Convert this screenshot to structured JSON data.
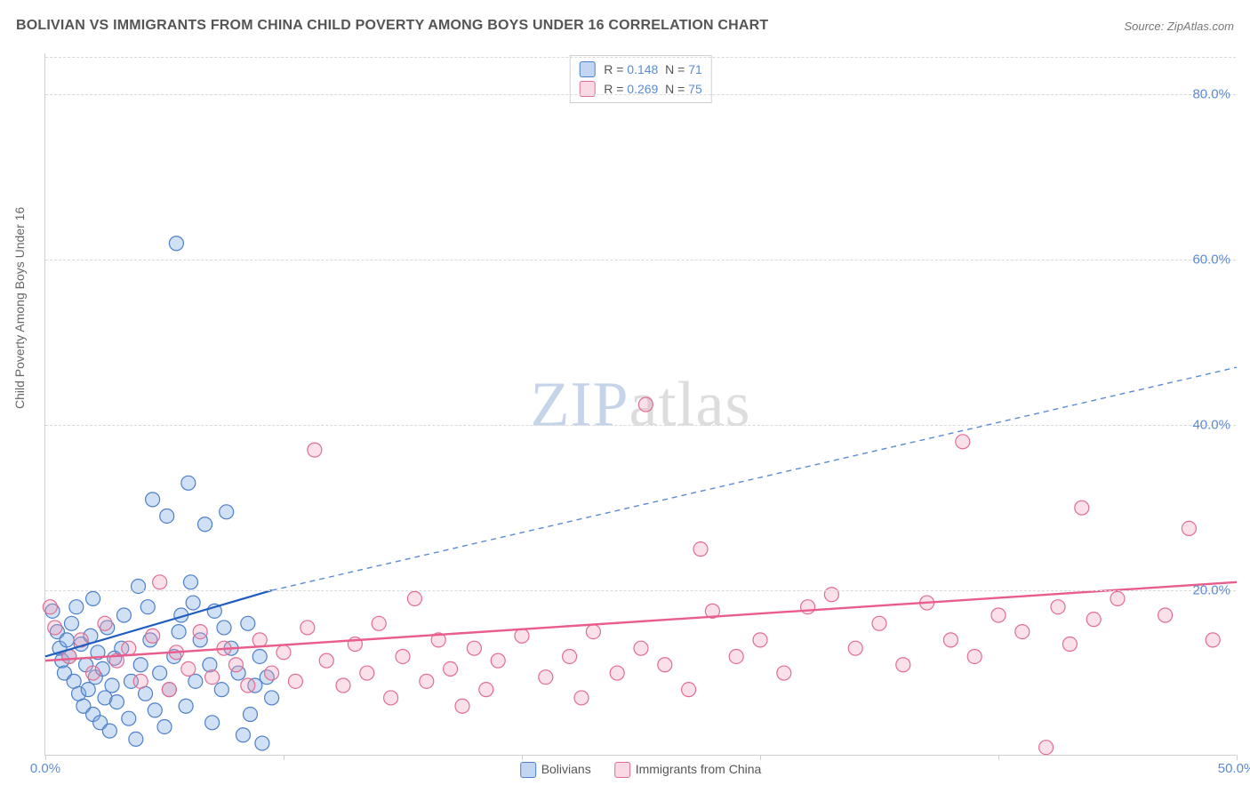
{
  "title": "BOLIVIAN VS IMMIGRANTS FROM CHINA CHILD POVERTY AMONG BOYS UNDER 16 CORRELATION CHART",
  "source": "Source: ZipAtlas.com",
  "watermark": {
    "part1": "ZIP",
    "part2": "atlas"
  },
  "y_axis_label": "Child Poverty Among Boys Under 16",
  "chart": {
    "type": "scatter",
    "background_color": "#ffffff",
    "grid_color": "#d9d9d9",
    "axis_color": "#cfcfcf",
    "tick_label_color": "#5b8bd4",
    "xlim": [
      0,
      50
    ],
    "ylim": [
      0,
      85
    ],
    "x_ticks": [
      0,
      10,
      20,
      30,
      40,
      50
    ],
    "x_tick_labels": [
      "0.0%",
      "",
      "",
      "",
      "",
      "50.0%"
    ],
    "y_ticks": [
      20,
      40,
      60,
      80
    ],
    "y_tick_labels": [
      "20.0%",
      "40.0%",
      "60.0%",
      "80.0%"
    ],
    "marker_radius": 8,
    "marker_stroke_width": 1.2,
    "series": [
      {
        "name": "Bolivians",
        "fill": "rgba(120,165,225,0.35)",
        "stroke": "#4d7fc9",
        "R": "0.148",
        "N": "71",
        "trend": {
          "solid": {
            "x1": 0.0,
            "y1": 12.0,
            "x2": 9.5,
            "y2": 20.0,
            "color": "#1f5dbf",
            "width": 2.2
          },
          "dashed": {
            "x1": 9.5,
            "y1": 20.0,
            "x2": 50.0,
            "y2": 47.0,
            "color": "#5b8bd4",
            "width": 1.4,
            "dash": "6 5"
          }
        },
        "points": [
          [
            0.3,
            17.5
          ],
          [
            0.5,
            15.0
          ],
          [
            0.6,
            13.0
          ],
          [
            0.7,
            11.5
          ],
          [
            0.8,
            10.0
          ],
          [
            0.9,
            14.0
          ],
          [
            1.0,
            12.0
          ],
          [
            1.1,
            16.0
          ],
          [
            1.2,
            9.0
          ],
          [
            1.3,
            18.0
          ],
          [
            1.4,
            7.5
          ],
          [
            1.5,
            13.5
          ],
          [
            1.6,
            6.0
          ],
          [
            1.7,
            11.0
          ],
          [
            1.8,
            8.0
          ],
          [
            1.9,
            14.5
          ],
          [
            2.0,
            5.0
          ],
          [
            2.1,
            9.5
          ],
          [
            2.2,
            12.5
          ],
          [
            2.3,
            4.0
          ],
          [
            2.4,
            10.5
          ],
          [
            2.5,
            7.0
          ],
          [
            2.6,
            15.5
          ],
          [
            2.7,
            3.0
          ],
          [
            2.8,
            8.5
          ],
          [
            2.9,
            11.8
          ],
          [
            3.0,
            6.5
          ],
          [
            3.2,
            13.0
          ],
          [
            3.3,
            17.0
          ],
          [
            3.5,
            4.5
          ],
          [
            3.6,
            9.0
          ],
          [
            3.8,
            2.0
          ],
          [
            4.0,
            11.0
          ],
          [
            4.2,
            7.5
          ],
          [
            4.4,
            14.0
          ],
          [
            4.5,
            31.0
          ],
          [
            4.6,
            5.5
          ],
          [
            4.8,
            10.0
          ],
          [
            5.0,
            3.5
          ],
          [
            5.1,
            29.0
          ],
          [
            5.2,
            8.0
          ],
          [
            5.4,
            12.0
          ],
          [
            5.5,
            62.0
          ],
          [
            5.7,
            17.0
          ],
          [
            5.9,
            6.0
          ],
          [
            6.0,
            33.0
          ],
          [
            6.1,
            21.0
          ],
          [
            6.3,
            9.0
          ],
          [
            6.5,
            14.0
          ],
          [
            6.7,
            28.0
          ],
          [
            6.9,
            11.0
          ],
          [
            7.1,
            17.5
          ],
          [
            7.4,
            8.0
          ],
          [
            7.6,
            29.5
          ],
          [
            7.8,
            13.0
          ],
          [
            8.1,
            10.0
          ],
          [
            8.3,
            2.5
          ],
          [
            8.5,
            16.0
          ],
          [
            8.8,
            8.5
          ],
          [
            9.0,
            12.0
          ],
          [
            9.1,
            1.5
          ],
          [
            9.3,
            9.5
          ],
          [
            9.5,
            7.0
          ],
          [
            3.9,
            20.5
          ],
          [
            5.6,
            15.0
          ],
          [
            6.2,
            18.5
          ],
          [
            7.0,
            4.0
          ],
          [
            7.5,
            15.5
          ],
          [
            8.6,
            5.0
          ],
          [
            2.0,
            19.0
          ],
          [
            4.3,
            18.0
          ]
        ]
      },
      {
        "name": "Immigrants from China",
        "fill": "rgba(240,160,185,0.32)",
        "stroke": "#e06d94",
        "R": "0.269",
        "N": "75",
        "trend": {
          "solid": {
            "x1": 0.0,
            "y1": 11.5,
            "x2": 50.0,
            "y2": 21.0,
            "color": "#e85d8c",
            "width": 2.4
          }
        },
        "points": [
          [
            0.2,
            18.0
          ],
          [
            0.4,
            15.5
          ],
          [
            1.0,
            12.0
          ],
          [
            1.5,
            14.0
          ],
          [
            2.0,
            10.0
          ],
          [
            2.5,
            16.0
          ],
          [
            3.0,
            11.5
          ],
          [
            3.5,
            13.0
          ],
          [
            4.0,
            9.0
          ],
          [
            4.5,
            14.5
          ],
          [
            4.8,
            21.0
          ],
          [
            5.2,
            8.0
          ],
          [
            5.5,
            12.5
          ],
          [
            6.0,
            10.5
          ],
          [
            6.5,
            15.0
          ],
          [
            7.0,
            9.5
          ],
          [
            7.5,
            13.0
          ],
          [
            8.0,
            11.0
          ],
          [
            8.5,
            8.5
          ],
          [
            9.0,
            14.0
          ],
          [
            9.5,
            10.0
          ],
          [
            10.0,
            12.5
          ],
          [
            10.5,
            9.0
          ],
          [
            11.0,
            15.5
          ],
          [
            11.3,
            37.0
          ],
          [
            11.8,
            11.5
          ],
          [
            12.5,
            8.5
          ],
          [
            13.0,
            13.5
          ],
          [
            13.5,
            10.0
          ],
          [
            14.0,
            16.0
          ],
          [
            14.5,
            7.0
          ],
          [
            15.0,
            12.0
          ],
          [
            15.5,
            19.0
          ],
          [
            16.0,
            9.0
          ],
          [
            16.5,
            14.0
          ],
          [
            17.0,
            10.5
          ],
          [
            17.5,
            6.0
          ],
          [
            18.0,
            13.0
          ],
          [
            18.5,
            8.0
          ],
          [
            19.0,
            11.5
          ],
          [
            20.0,
            14.5
          ],
          [
            21.0,
            9.5
          ],
          [
            22.0,
            12.0
          ],
          [
            22.5,
            7.0
          ],
          [
            23.0,
            15.0
          ],
          [
            24.0,
            10.0
          ],
          [
            25.0,
            13.0
          ],
          [
            25.2,
            42.5
          ],
          [
            26.0,
            11.0
          ],
          [
            27.0,
            8.0
          ],
          [
            27.5,
            25.0
          ],
          [
            28.0,
            17.5
          ],
          [
            29.0,
            12.0
          ],
          [
            30.0,
            14.0
          ],
          [
            31.0,
            10.0
          ],
          [
            32.0,
            18.0
          ],
          [
            33.0,
            19.5
          ],
          [
            34.0,
            13.0
          ],
          [
            35.0,
            16.0
          ],
          [
            36.0,
            11.0
          ],
          [
            37.0,
            18.5
          ],
          [
            38.0,
            14.0
          ],
          [
            38.5,
            38.0
          ],
          [
            39.0,
            12.0
          ],
          [
            40.0,
            17.0
          ],
          [
            41.0,
            15.0
          ],
          [
            42.0,
            1.0
          ],
          [
            42.5,
            18.0
          ],
          [
            43.0,
            13.5
          ],
          [
            43.5,
            30.0
          ],
          [
            44.0,
            16.5
          ],
          [
            45.0,
            19.0
          ],
          [
            47.0,
            17.0
          ],
          [
            48.0,
            27.5
          ],
          [
            49.0,
            14.0
          ]
        ]
      }
    ]
  },
  "legend_bottom": [
    {
      "label": "Bolivians",
      "swatch": "sw-blue"
    },
    {
      "label": "Immigrants from China",
      "swatch": "sw-pink"
    }
  ]
}
